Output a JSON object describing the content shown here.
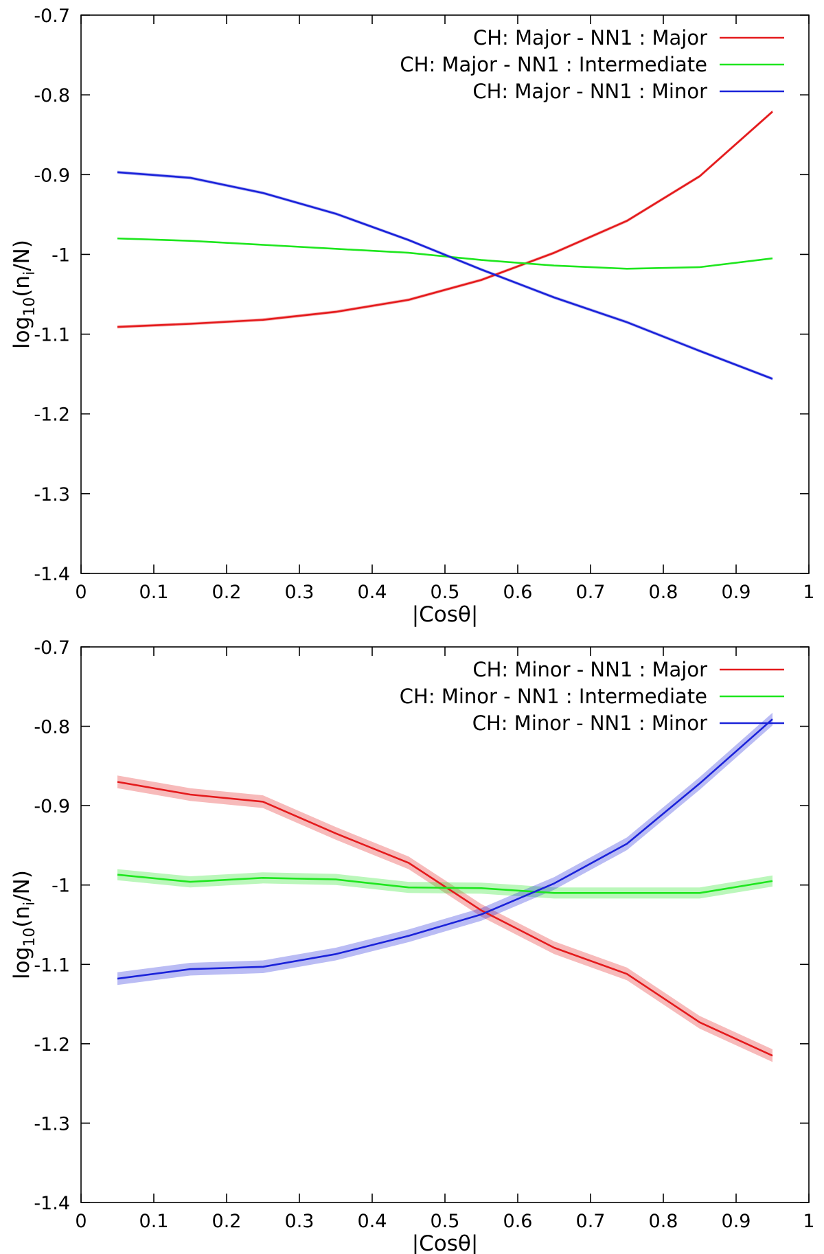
{
  "chart_data": [
    {
      "type": "line",
      "title": "",
      "xlabel": "|Cosθ|",
      "ylabel_main": "log",
      "ylabel_sub": "10",
      "ylabel_open": "(n",
      "ylabel_index": "i",
      "ylabel_close": "/N)",
      "xlim": [
        0,
        1
      ],
      "ylim": [
        -1.4,
        -0.7
      ],
      "xticks": [
        0,
        0.1,
        0.2,
        0.3,
        0.4,
        0.5,
        0.6,
        0.7,
        0.8,
        0.9,
        1
      ],
      "xtick_labels": [
        "0",
        "0.1",
        "0.2",
        "0.3",
        "0.4",
        "0.5",
        "0.6",
        "0.7",
        "0.8",
        "0.9",
        "1"
      ],
      "yticks": [
        -1.4,
        -1.3,
        -1.2,
        -1.1,
        -1.0,
        -0.9,
        -0.8,
        -0.7
      ],
      "ytick_labels": [
        "-1.4",
        "-1.3",
        "-1.2",
        "-1.1",
        "-1",
        "-0.9",
        "-0.8",
        "-0.7"
      ],
      "grid": false,
      "legend_position": "top-right",
      "x": [
        0.05,
        0.15,
        0.25,
        0.35,
        0.45,
        0.55,
        0.65,
        0.75,
        0.85,
        0.95
      ],
      "series": [
        {
          "name": "CH: Major - NN1 : Major",
          "color": "#e41a1c",
          "values": [
            -1.091,
            -1.087,
            -1.082,
            -1.072,
            -1.057,
            -1.032,
            -0.998,
            -0.958,
            -0.902,
            -0.821
          ],
          "band": 0.002
        },
        {
          "name": "CH: Major - NN1 : Intermediate",
          "color": "#1ee61e",
          "values": [
            -0.98,
            -0.983,
            -0.988,
            -0.993,
            -0.998,
            -1.007,
            -1.014,
            -1.018,
            -1.016,
            -1.005
          ],
          "band": 0.001
        },
        {
          "name": "CH: Major - NN1 : Minor",
          "color": "#1a22d9",
          "values": [
            -0.897,
            -0.904,
            -0.923,
            -0.949,
            -0.982,
            -1.019,
            -1.054,
            -1.085,
            -1.121,
            -1.156
          ],
          "band": 0.002
        }
      ]
    },
    {
      "type": "line",
      "title": "",
      "xlabel": "|Cosθ|",
      "ylabel_main": "log",
      "ylabel_sub": "10",
      "ylabel_open": "(n",
      "ylabel_index": "i",
      "ylabel_close": "/N)",
      "xlim": [
        0,
        1
      ],
      "ylim": [
        -1.4,
        -0.7
      ],
      "xticks": [
        0,
        0.1,
        0.2,
        0.3,
        0.4,
        0.5,
        0.6,
        0.7,
        0.8,
        0.9,
        1
      ],
      "xtick_labels": [
        "0",
        "0.1",
        "0.2",
        "0.3",
        "0.4",
        "0.5",
        "0.6",
        "0.7",
        "0.8",
        "0.9",
        "1"
      ],
      "yticks": [
        -1.4,
        -1.3,
        -1.2,
        -1.1,
        -1.0,
        -0.9,
        -0.8,
        -0.7
      ],
      "ytick_labels": [
        "-1.4",
        "-1.3",
        "-1.2",
        "-1.1",
        "-1",
        "-0.9",
        "-0.8",
        "-0.7"
      ],
      "grid": false,
      "legend_position": "top-right",
      "x": [
        0.05,
        0.15,
        0.25,
        0.35,
        0.45,
        0.55,
        0.65,
        0.75,
        0.85,
        0.95
      ],
      "series": [
        {
          "name": "CH: Minor - NN1 : Major",
          "color": "#e41a1c",
          "values": [
            -0.87,
            -0.886,
            -0.895,
            -0.935,
            -0.972,
            -1.032,
            -1.079,
            -1.112,
            -1.173,
            -1.215
          ],
          "band": 0.008
        },
        {
          "name": "CH: Minor - NN1 : Intermediate",
          "color": "#1ee61e",
          "values": [
            -0.987,
            -0.996,
            -0.991,
            -0.993,
            -1.003,
            -1.004,
            -1.01,
            -1.01,
            -1.01,
            -0.995
          ],
          "band": 0.007
        },
        {
          "name": "CH: Minor - NN1 : Minor",
          "color": "#1a22d9",
          "values": [
            -1.118,
            -1.106,
            -1.103,
            -1.087,
            -1.064,
            -1.037,
            -0.998,
            -0.948,
            -0.872,
            -0.791
          ],
          "band": 0.008
        }
      ]
    }
  ]
}
